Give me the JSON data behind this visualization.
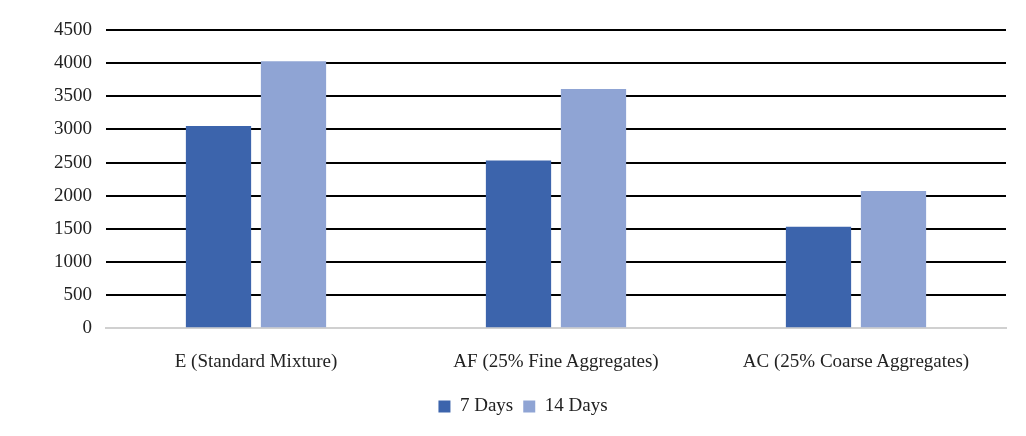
{
  "chart_data": {
    "type": "bar",
    "categories": [
      "E (Standard Mixture)",
      "AF (25% Fine Aggregates)",
      "AC (25% Coarse Aggregates)"
    ],
    "series": [
      {
        "name": "7 Days",
        "color": "#3c64ac",
        "values": [
          3050,
          2530,
          1530
        ]
      },
      {
        "name": "14 Days",
        "color": "#8fa4d4",
        "values": [
          4030,
          3610,
          2070
        ]
      }
    ],
    "ylim": [
      0,
      4500
    ],
    "yticks": [
      0,
      500,
      1000,
      1500,
      2000,
      2500,
      3000,
      3500,
      4000,
      4500
    ],
    "grid": "y",
    "legend": "bottom"
  }
}
